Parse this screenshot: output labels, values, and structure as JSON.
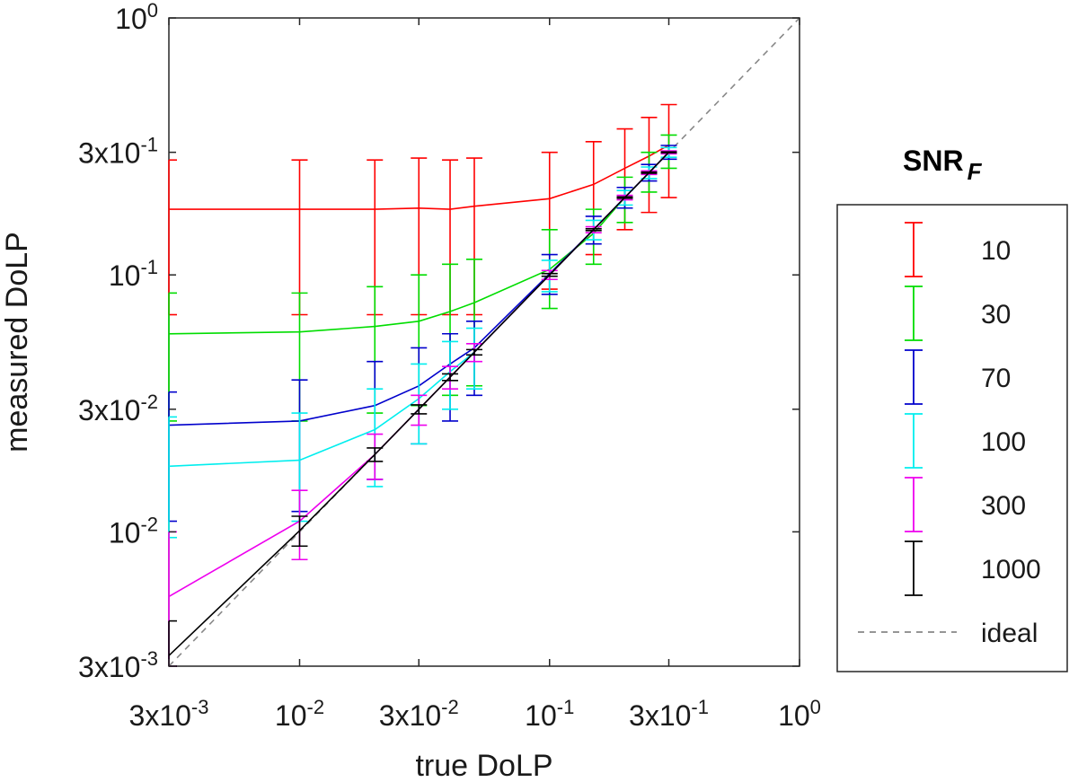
{
  "chart_data": {
    "type": "line",
    "xlabel": "true DoLP",
    "ylabel": "measured DoLP",
    "xscale": "log",
    "yscale": "log",
    "xlim": [
      0.003,
      1
    ],
    "ylim": [
      0.003,
      1
    ],
    "x_ticks": [
      {
        "value": 0.003,
        "label": "3x10",
        "exp": "-3"
      },
      {
        "value": 0.01,
        "label": "10",
        "exp": "-2"
      },
      {
        "value": 0.03,
        "label": "3x10",
        "exp": "-2"
      },
      {
        "value": 0.1,
        "label": "10",
        "exp": "-1"
      },
      {
        "value": 0.3,
        "label": "3x10",
        "exp": "-1"
      },
      {
        "value": 1,
        "label": "10",
        "exp": "0"
      }
    ],
    "y_ticks": [
      {
        "value": 0.003,
        "label": "3x10",
        "exp": "-3"
      },
      {
        "value": 0.01,
        "label": "10",
        "exp": "-2"
      },
      {
        "value": 0.03,
        "label": "3x10",
        "exp": "-2"
      },
      {
        "value": 0.1,
        "label": "10",
        "exp": "-1"
      },
      {
        "value": 0.3,
        "label": "3x10",
        "exp": "-1"
      },
      {
        "value": 1,
        "label": "10",
        "exp": "0"
      }
    ],
    "grid": false,
    "legend": {
      "placement": "right",
      "title": "SNR",
      "title_sub": "F"
    },
    "x": [
      0.003,
      0.01,
      0.02,
      0.03,
      0.04,
      0.05,
      0.1,
      0.15,
      0.2,
      0.25,
      0.3
    ],
    "series": [
      {
        "name": "10",
        "color": "#ff0000",
        "y": [
          0.18,
          0.18,
          0.18,
          0.182,
          0.18,
          0.185,
          0.198,
          0.225,
          0.26,
          0.29,
          0.32
        ],
        "lo": [
          0.07,
          0.07,
          0.07,
          0.07,
          0.07,
          0.07,
          0.088,
          0.12,
          0.15,
          0.175,
          0.2
        ],
        "hi": [
          0.28,
          0.28,
          0.28,
          0.285,
          0.28,
          0.285,
          0.3,
          0.33,
          0.37,
          0.41,
          0.46
        ]
      },
      {
        "name": "30",
        "color": "#00dd00",
        "y": [
          0.059,
          0.06,
          0.063,
          0.066,
          0.072,
          0.078,
          0.105,
          0.145,
          0.2,
          0.25,
          0.3
        ],
        "lo": [
          0.027,
          0.027,
          0.029,
          0.031,
          0.034,
          0.037,
          0.074,
          0.11,
          0.16,
          0.21,
          0.26
        ],
        "hi": [
          0.085,
          0.085,
          0.09,
          0.1,
          0.11,
          0.115,
          0.15,
          0.18,
          0.24,
          0.3,
          0.35
        ]
      },
      {
        "name": "70",
        "color": "#0000cc",
        "y": [
          0.026,
          0.027,
          0.031,
          0.037,
          0.045,
          0.052,
          0.101,
          0.15,
          0.2,
          0.25,
          0.3
        ],
        "lo": [
          0.011,
          0.012,
          0.016,
          0.022,
          0.027,
          0.034,
          0.084,
          0.132,
          0.182,
          0.232,
          0.282
        ],
        "hi": [
          0.035,
          0.039,
          0.046,
          0.052,
          0.059,
          0.066,
          0.12,
          0.169,
          0.219,
          0.269,
          0.319
        ]
      },
      {
        "name": "100",
        "color": "#00eeee",
        "y": [
          0.018,
          0.019,
          0.025,
          0.033,
          0.042,
          0.05,
          0.1,
          0.15,
          0.2,
          0.25,
          0.3
        ],
        "lo": [
          0.0095,
          0.011,
          0.015,
          0.022,
          0.03,
          0.036,
          0.086,
          0.137,
          0.187,
          0.237,
          0.287
        ],
        "hi": [
          0.028,
          0.029,
          0.036,
          0.045,
          0.055,
          0.062,
          0.114,
          0.163,
          0.213,
          0.263,
          0.313
        ]
      },
      {
        "name": "300",
        "color": "#ee00ee",
        "y": [
          0.0056,
          0.011,
          0.02,
          0.03,
          0.04,
          0.05,
          0.1,
          0.15,
          0.2,
          0.25,
          0.3
        ],
        "lo": [
          0.003,
          0.0078,
          0.016,
          0.026,
          0.036,
          0.046,
          0.096,
          0.146,
          0.196,
          0.246,
          0.296
        ],
        "hi": [
          0.01,
          0.0145,
          0.024,
          0.034,
          0.044,
          0.054,
          0.104,
          0.154,
          0.204,
          0.254,
          0.304
        ]
      },
      {
        "name": "1000",
        "color": "#000000",
        "y": [
          0.0033,
          0.0101,
          0.02,
          0.03,
          0.04,
          0.05,
          0.1,
          0.15,
          0.2,
          0.25,
          0.3
        ],
        "lo": [
          0.003,
          0.0088,
          0.0188,
          0.0288,
          0.0388,
          0.0488,
          0.0988,
          0.1488,
          0.1988,
          0.2488,
          0.2988
        ],
        "hi": [
          0.0045,
          0.0115,
          0.0212,
          0.0312,
          0.0412,
          0.0512,
          0.1012,
          0.1512,
          0.2012,
          0.2512,
          0.3012
        ]
      }
    ],
    "ideal": {
      "name": "ideal",
      "color": "#888888",
      "x": [
        0.003,
        1
      ],
      "y": [
        0.003,
        1
      ]
    }
  }
}
